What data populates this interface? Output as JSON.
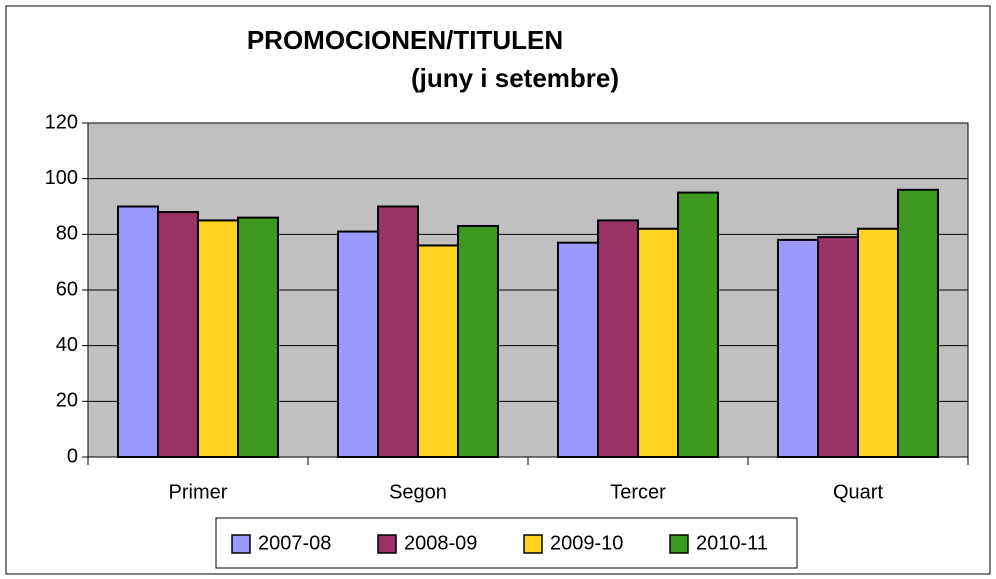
{
  "chart_data": {
    "type": "bar",
    "title": "PROMOCIONEN/TITULEN",
    "subtitle": "(juny i setembre)",
    "categories": [
      "Primer",
      "Segon",
      "Tercer",
      "Quart"
    ],
    "series": [
      {
        "name": "2007-08",
        "color": "#9999ff",
        "values": [
          90,
          81,
          77,
          78
        ]
      },
      {
        "name": "2008-09",
        "color": "#993366",
        "values": [
          88,
          90,
          85,
          79
        ]
      },
      {
        "name": "2009-10",
        "color": "#ffd320",
        "values": [
          85,
          76,
          82,
          82
        ]
      },
      {
        "name": "2010-11",
        "color": "#3c9a1e",
        "values": [
          86,
          83,
          95,
          96
        ]
      }
    ],
    "ylim": [
      0,
      120
    ],
    "yticks": [
      0,
      20,
      40,
      60,
      80,
      100,
      120
    ],
    "grid": true,
    "legend": "bottom"
  }
}
